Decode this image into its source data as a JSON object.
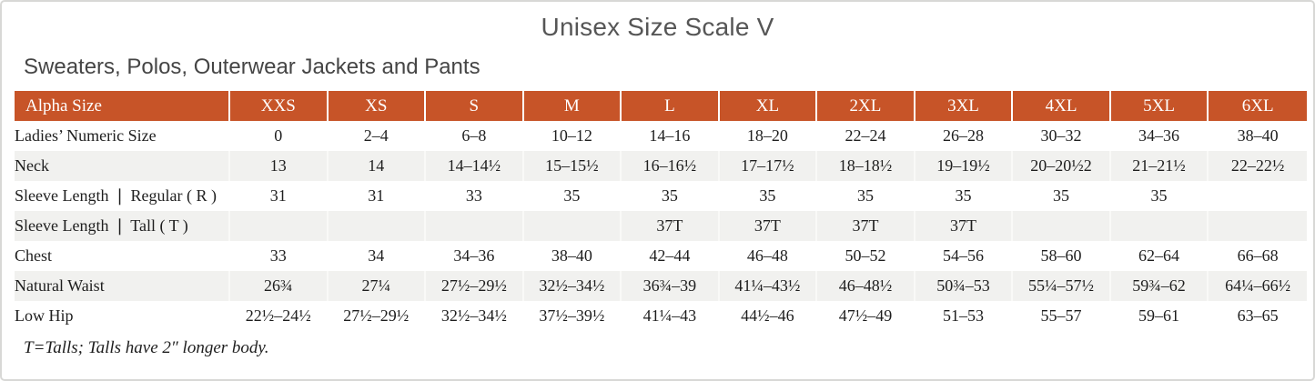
{
  "page": {
    "title": "Unisex Size Scale V",
    "subtitle": "Sweaters, Polos, Outerwear Jackets and Pants",
    "footnote": "T=Talls; Talls have 2″ longer body."
  },
  "table": {
    "header": [
      "Alpha Size",
      "XXS",
      "XS",
      "S",
      "M",
      "L",
      "XL",
      "2XL",
      "3XL",
      "4XL",
      "5XL",
      "6XL"
    ],
    "rows": [
      {
        "label": "Ladies’ Numeric Size",
        "values": [
          "0",
          "2–4",
          "6–8",
          "10–12",
          "14–16",
          "18–20",
          "22–24",
          "26–28",
          "30–32",
          "34–36",
          "38–40"
        ]
      },
      {
        "label": "Neck",
        "values": [
          "13",
          "14",
          "14–14½",
          "15–15½",
          "16–16½",
          "17–17½",
          "18–18½",
          "19–19½",
          "20–20½2",
          "21–21½",
          "22–22½"
        ]
      },
      {
        "label": "Sleeve Length ❘ Regular ( R )",
        "values": [
          "31",
          "31",
          "33",
          "35",
          "35",
          "35",
          "35",
          "35",
          "35",
          "35",
          ""
        ]
      },
      {
        "label": "Sleeve Length ❘ Tall ( T )",
        "values": [
          "",
          "",
          "",
          "",
          "37T",
          "37T",
          "37T",
          "37T",
          "",
          "",
          ""
        ]
      },
      {
        "label": "Chest",
        "values": [
          "33",
          "34",
          "34–36",
          "38–40",
          "42–44",
          "46–48",
          "50–52",
          "54–56",
          "58–60",
          "62–64",
          "66–68"
        ]
      },
      {
        "label": "Natural Waist",
        "values": [
          "26¾",
          "27¼",
          "27½–29½",
          "32½–34½",
          "36¾–39",
          "41¼–43½",
          "46–48½",
          "50¾–53",
          "55¼–57½",
          "59¾–62",
          "64¼–66½"
        ]
      },
      {
        "label": "Low Hip",
        "values": [
          "22½–24½",
          "27½–29½",
          "32½–34½",
          "37½–39½",
          "41¼–43",
          "44½–46",
          "47½–49",
          "51–53",
          "55–57",
          "59–61",
          "63–65"
        ]
      }
    ]
  },
  "colors": {
    "header_bg": "#c75428",
    "header_text": "#ffffff",
    "row_alt_bg": "#f1f1ef",
    "body_text": "#1e1e1e",
    "title_text": "#565656"
  }
}
